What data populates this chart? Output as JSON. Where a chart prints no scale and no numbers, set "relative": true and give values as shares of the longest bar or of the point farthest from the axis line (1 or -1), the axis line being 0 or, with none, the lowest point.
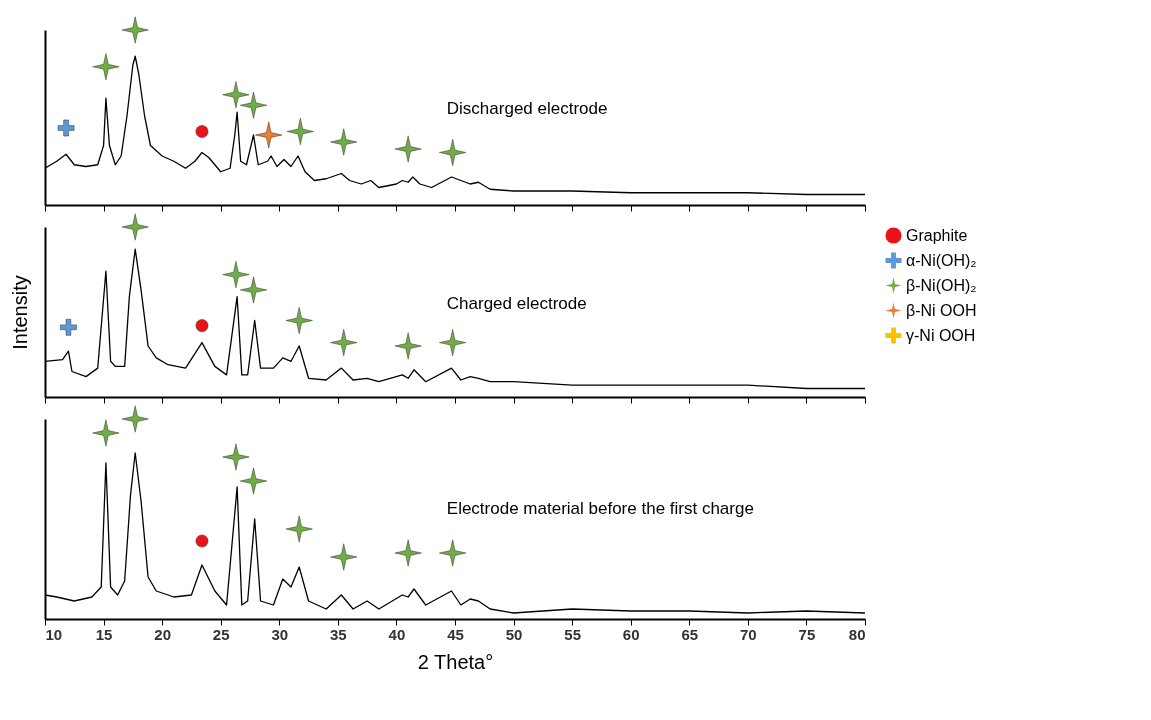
{
  "chart_data": [
    {
      "type": "line",
      "relative": true,
      "xlim": [
        10,
        80
      ],
      "xticks": [
        10,
        15,
        20,
        25,
        30,
        35,
        40,
        45,
        50,
        55,
        60,
        65,
        70,
        75,
        80
      ],
      "tick_labels": false,
      "annotations": [
        "Discharged electrode"
      ],
      "series": [
        {
          "type": "line",
          "color": "#000000",
          "x": [
            10,
            11,
            11.8,
            12.5,
            13.5,
            14.5,
            15,
            15.2,
            15.5,
            16,
            16.5,
            17,
            17.5,
            17.7,
            18,
            18.5,
            19,
            20,
            21,
            22,
            22.8,
            23.4,
            24,
            25,
            25.8,
            26.2,
            26.4,
            26.7,
            27.2,
            27.8,
            28.2,
            29,
            29.3,
            29.8,
            30.4,
            31,
            31.6,
            32.2,
            33,
            34,
            35.3,
            36,
            37,
            37.8,
            38.5,
            40,
            40.5,
            41,
            41.4,
            42,
            43,
            44.7,
            45.5,
            46.3,
            47,
            48,
            50,
            55,
            60,
            65,
            70,
            75,
            80
          ],
          "values": [
            0.21,
            0.25,
            0.29,
            0.23,
            0.22,
            0.23,
            0.34,
            0.61,
            0.34,
            0.23,
            0.28,
            0.51,
            0.8,
            0.85,
            0.75,
            0.51,
            0.34,
            0.28,
            0.25,
            0.21,
            0.25,
            0.3,
            0.27,
            0.19,
            0.21,
            0.4,
            0.53,
            0.25,
            0.23,
            0.4,
            0.23,
            0.25,
            0.28,
            0.22,
            0.26,
            0.22,
            0.28,
            0.19,
            0.14,
            0.15,
            0.18,
            0.14,
            0.12,
            0.14,
            0.1,
            0.12,
            0.14,
            0.13,
            0.16,
            0.12,
            0.1,
            0.16,
            0.14,
            0.12,
            0.13,
            0.09,
            0.08,
            0.08,
            0.07,
            0.07,
            0.07,
            0.06,
            0.06
          ]
        },
        {
          "type": "scatter",
          "marker": "circle",
          "color": "#e8141a",
          "x": [
            23.4
          ],
          "values": [
            0.42
          ]
        },
        {
          "type": "scatter",
          "marker": "cross",
          "color": "#5b9bd5",
          "x": [
            11.8
          ],
          "values": [
            0.44
          ]
        },
        {
          "type": "scatter",
          "marker": "star",
          "color": "#70ad47",
          "x": [
            15.2,
            17.7,
            26.3,
            27.8,
            31.8,
            35.5,
            41,
            44.8
          ],
          "values": [
            0.79,
            1,
            0.63,
            0.57,
            0.42,
            0.36,
            0.32,
            0.3
          ]
        },
        {
          "type": "scatter",
          "marker": "star",
          "color": "#ed7d31",
          "x": [
            29.1
          ],
          "values": [
            0.4
          ]
        }
      ]
    },
    {
      "type": "line",
      "relative": true,
      "xlim": [
        10,
        80
      ],
      "xticks": [
        10,
        15,
        20,
        25,
        30,
        35,
        40,
        45,
        50,
        55,
        60,
        65,
        70,
        75,
        80
      ],
      "tick_labels": false,
      "ylabel": "Intensity",
      "legend": "right",
      "annotations": [
        "Charged electrode"
      ],
      "series": [
        {
          "type": "line",
          "color": "#000000",
          "x": [
            10,
            11.5,
            12,
            12.3,
            13.5,
            14.5,
            15.2,
            15.6,
            16,
            16.8,
            17.2,
            17.7,
            18.2,
            18.8,
            19.5,
            20.5,
            22,
            23.4,
            24.5,
            25.5,
            26.4,
            26.8,
            27.3,
            27.9,
            28.4,
            29.5,
            30.3,
            31,
            31.7,
            32.5,
            34,
            35.3,
            36.3,
            37.5,
            38.5,
            40.5,
            41,
            41.5,
            42.5,
            44.7,
            45.5,
            46.3,
            47,
            48,
            50,
            55,
            60,
            65,
            70,
            75,
            80
          ],
          "values": [
            0.21,
            0.22,
            0.27,
            0.15,
            0.12,
            0.17,
            0.74,
            0.21,
            0.18,
            0.18,
            0.59,
            0.87,
            0.63,
            0.3,
            0.23,
            0.19,
            0.17,
            0.32,
            0.18,
            0.13,
            0.59,
            0.13,
            0.13,
            0.45,
            0.17,
            0.17,
            0.23,
            0.21,
            0.3,
            0.11,
            0.1,
            0.17,
            0.1,
            0.11,
            0.09,
            0.13,
            0.11,
            0.16,
            0.09,
            0.17,
            0.1,
            0.12,
            0.11,
            0.09,
            0.09,
            0.07,
            0.07,
            0.07,
            0.07,
            0.05,
            0.05
          ]
        },
        {
          "type": "scatter",
          "name": "Graphite",
          "marker": "circle",
          "color": "#e8141a",
          "x": [
            23.4
          ],
          "values": [
            0.42
          ]
        },
        {
          "type": "scatter",
          "name": "α-Ni(OH)₂",
          "marker": "cross",
          "color": "#5b9bd5",
          "x": [
            12
          ],
          "values": [
            0.41
          ]
        },
        {
          "type": "scatter",
          "name": "β-Ni(OH)₂",
          "marker": "star",
          "color": "#70ad47",
          "x": [
            17.7,
            26.3,
            27.8,
            31.7,
            35.5,
            41,
            44.8
          ],
          "values": [
            1,
            0.72,
            0.63,
            0.45,
            0.32,
            0.3,
            0.32
          ]
        },
        {
          "type": "scatter",
          "name": "β-Ni OOH",
          "marker": "star",
          "color": "#ed7d31"
        },
        {
          "type": "scatter",
          "name": "γ-Ni OOH",
          "marker": "cross",
          "color": "#ffc000"
        }
      ]
    },
    {
      "type": "line",
      "relative": true,
      "xlim": [
        10,
        80
      ],
      "xticks": [
        10,
        15,
        20,
        25,
        30,
        35,
        40,
        45,
        50,
        55,
        60,
        65,
        70,
        75,
        80
      ],
      "tick_labels": "x",
      "xlabel": "2 Theta°",
      "annotations": [
        "Electrode material before the first charge"
      ],
      "series": [
        {
          "type": "line",
          "color": "#000000",
          "x": [
            10,
            11,
            12.5,
            14,
            14.8,
            15.2,
            15.6,
            16.2,
            16.8,
            17.3,
            17.7,
            18.2,
            18.8,
            19.5,
            21,
            22.5,
            23.4,
            24.5,
            25.5,
            26.4,
            26.8,
            27.3,
            27.9,
            28.4,
            29.5,
            30.3,
            31,
            31.7,
            32.5,
            34,
            35.3,
            36.3,
            37.5,
            38.5,
            40.5,
            41,
            41.5,
            42.5,
            44.7,
            45.5,
            46.3,
            47,
            48,
            50,
            55,
            60,
            65,
            70,
            75,
            80
          ],
          "values": [
            0.12,
            0.11,
            0.09,
            0.11,
            0.16,
            0.78,
            0.16,
            0.12,
            0.19,
            0.62,
            0.83,
            0.59,
            0.21,
            0.14,
            0.11,
            0.12,
            0.27,
            0.14,
            0.07,
            0.66,
            0.07,
            0.09,
            0.5,
            0.09,
            0.07,
            0.2,
            0.16,
            0.26,
            0.09,
            0.05,
            0.12,
            0.05,
            0.09,
            0.05,
            0.12,
            0.11,
            0.15,
            0.07,
            0.14,
            0.07,
            0.1,
            0.09,
            0.05,
            0.03,
            0.05,
            0.04,
            0.04,
            0.03,
            0.04,
            0.03
          ]
        },
        {
          "type": "scatter",
          "marker": "circle",
          "color": "#e8141a",
          "x": [
            23.4
          ],
          "values": [
            0.39
          ]
        },
        {
          "type": "scatter",
          "marker": "star",
          "color": "#70ad47",
          "x": [
            15.2,
            17.7,
            26.3,
            27.8,
            31.7,
            35.5,
            41,
            44.8
          ],
          "values": [
            0.93,
            1,
            0.81,
            0.69,
            0.45,
            0.31,
            0.33,
            0.33
          ]
        }
      ]
    }
  ]
}
